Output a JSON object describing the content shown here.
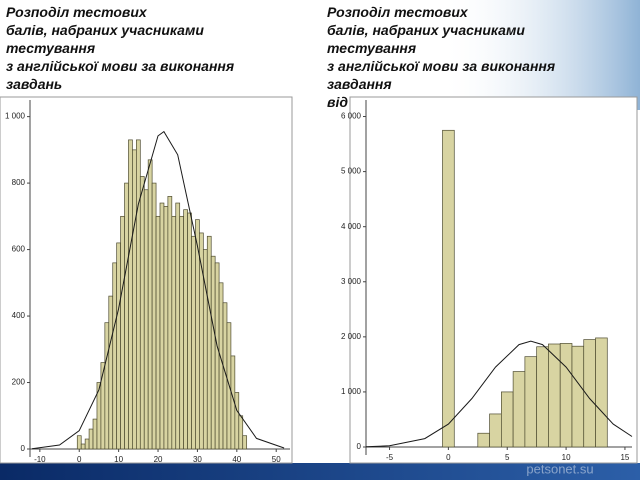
{
  "chart_data": [
    {
      "type": "histogram",
      "title": [
        "Розподіл тестових",
        "балів, набраних учасниками",
        "тестування",
        "з англійської мови за виконання",
        "завдань"
      ],
      "bins": [
        -0.5,
        0.5,
        1.5,
        2.5,
        3.5,
        4.5,
        5.5,
        6.5,
        7.5,
        8.5,
        9.5,
        10.5,
        11.5,
        12.5,
        13.5,
        14.5,
        15.5,
        16.5,
        17.5,
        18.5,
        19.5,
        20.5,
        21.5,
        22.5,
        23.5,
        24.5,
        25.5,
        26.5,
        27.5,
        28.5,
        29.5,
        30.5,
        31.5,
        32.5,
        33.5,
        34.5,
        35.5,
        36.5,
        37.5,
        38.5,
        39.5,
        40.5,
        41.5,
        42.5
      ],
      "values": [
        40,
        15,
        30,
        60,
        90,
        200,
        260,
        380,
        460,
        560,
        620,
        700,
        800,
        930,
        900,
        930,
        820,
        780,
        870,
        800,
        700,
        740,
        730,
        760,
        700,
        740,
        700,
        720,
        710,
        640,
        690,
        650,
        600,
        640,
        580,
        560,
        500,
        440,
        380,
        280,
        170,
        100,
        40
      ],
      "curve_x": [
        -12,
        -5,
        0,
        5,
        10,
        15,
        20,
        21.5,
        25,
        30,
        35,
        40,
        45,
        52
      ],
      "curve_y": [
        1,
        12,
        55,
        178,
        422,
        736,
        942,
        955,
        885,
        611,
        310,
        116,
        32,
        3
      ],
      "color": "#d8d4a2",
      "edge_color": "#4e4c30",
      "curve_color": "#1a1a1a",
      "xlim": [
        -12.5,
        53.5
      ],
      "ylim": [
        0,
        1050
      ],
      "xticks": [
        -10,
        0,
        10,
        20,
        30,
        40,
        50
      ],
      "yticks": [
        0,
        200,
        400,
        600,
        800,
        {
          "value": 1000,
          "label": "1 000"
        }
      ]
    },
    {
      "type": "histogram",
      "title": [
        "Розподіл тестових",
        "балів, набраних учасниками",
        "тестування",
        "з англійської мови за виконання",
        "завдання",
        "від"
      ],
      "bins": [
        -0.5,
        0.5,
        1.5,
        2.5,
        3.5,
        4.5,
        5.5,
        6.5,
        7.5,
        8.5,
        9.5,
        10.5,
        11.5,
        12.5,
        13.5
      ],
      "values": [
        5750,
        0,
        0,
        250,
        600,
        1000,
        1370,
        1640,
        1820,
        1870,
        1880,
        1830,
        1950,
        1980
      ],
      "curve_x": [
        -7,
        -5,
        -2,
        0,
        2,
        4,
        6,
        7,
        8,
        10,
        12,
        14,
        15.6
      ],
      "curve_y": [
        4,
        21,
        153,
        415,
        880,
        1450,
        1860,
        1920,
        1860,
        1450,
        880,
        415,
        190
      ],
      "color": "#d8d4a2",
      "edge_color": "#4e4c30",
      "curve_color": "#1a1a1a",
      "xlim": [
        -7,
        15.6
      ],
      "ylim": [
        0,
        6300
      ],
      "xticks": [
        -5,
        0,
        5,
        10,
        15
      ],
      "yticks": [
        0,
        {
          "value": 1000,
          "label": "1 000"
        },
        {
          "value": 2000,
          "label": "2 000"
        },
        {
          "value": 3000,
          "label": "3 000"
        },
        {
          "value": 4000,
          "label": "4 000"
        },
        {
          "value": 5000,
          "label": "5 000"
        },
        {
          "value": 6000,
          "label": "6 000"
        }
      ]
    }
  ],
  "watermark": "petsonet.su"
}
